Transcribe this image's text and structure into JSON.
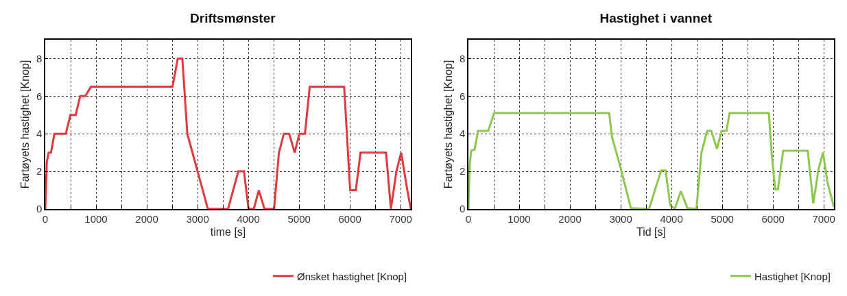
{
  "chart_data": [
    {
      "type": "line",
      "title": "Driftsmønster",
      "xlabel": "time [s]",
      "ylabel": "Fartøyets hastighet [Knop]",
      "series": [
        {
          "name": "Ønsket hastighet [Knop]",
          "color": "#e0393e",
          "x": [
            0,
            30,
            67,
            112,
            180,
            405,
            495,
            598,
            688,
            787,
            900,
            2506,
            2610,
            2700,
            2798,
            3000,
            3203,
            3600,
            3802,
            3914,
            4004,
            4107,
            4206,
            4318,
            4507,
            4602,
            4700,
            4804,
            4912,
            5007,
            5115,
            5209,
            5887,
            6005,
            6117,
            6209,
            6712,
            6808,
            6916,
            7010,
            7131,
            7200
          ],
          "values": [
            0,
            2.5,
            3,
            3,
            4,
            4,
            5,
            5,
            6,
            6,
            6.5,
            6.5,
            8,
            8,
            4,
            2,
            0,
            0,
            2,
            2,
            0,
            0,
            1,
            0,
            0,
            3,
            4,
            4,
            3,
            4,
            4,
            6.5,
            6.5,
            1,
            1,
            3,
            3,
            0,
            2,
            3,
            1,
            0
          ]
        }
      ],
      "xlim": [
        0,
        7200
      ],
      "ylim": [
        0,
        9
      ],
      "xticks": [
        0,
        {
          "value": 500,
          "label": null
        },
        1000,
        {
          "value": 1500,
          "label": null
        },
        2000,
        {
          "value": 2500,
          "label": null
        },
        3000,
        {
          "value": 3500,
          "label": null
        },
        4000,
        {
          "value": 4500,
          "label": null
        },
        5000,
        {
          "value": 5500,
          "label": null
        },
        6000,
        {
          "value": 6500,
          "label": null
        },
        7000
      ],
      "yticks": [
        0,
        2,
        4,
        6,
        8
      ],
      "grid": true,
      "legend": "bottom right"
    },
    {
      "type": "line",
      "title": "Hastighet i vannet",
      "xlabel": "Tid [s]",
      "ylabel": "Fartøyets hastighet [Knop]",
      "series": [
        {
          "name": "Hastighet [Knop]",
          "color": "#8cc84b",
          "x": [
            0,
            25,
            54,
            121,
            189,
            391,
            503,
            2772,
            2830,
            2997,
            3199,
            3558,
            3795,
            3884,
            3975,
            4064,
            4185,
            4312,
            4491,
            4590,
            4702,
            4784,
            4896,
            4986,
            5084,
            5143,
            5917,
            5975,
            6042,
            6096,
            6199,
            6684,
            6792,
            6894,
            6984,
            7074,
            7200
          ],
          "values": [
            0,
            2.3,
            3.1,
            3.15,
            4.15,
            4.15,
            5.1,
            5.1,
            3.8,
            2.2,
            0.05,
            0,
            2.05,
            2.05,
            0.2,
            0,
            0.95,
            0.05,
            0,
            3,
            4.15,
            4.15,
            3.2,
            4.15,
            4.15,
            5.1,
            5.1,
            2.9,
            1.05,
            1.05,
            3.1,
            3.1,
            0.3,
            2.1,
            3,
            1.4,
            0.1
          ]
        }
      ],
      "xlim": [
        0,
        7200
      ],
      "ylim": [
        0,
        9
      ],
      "xticks": [
        0,
        {
          "value": 500,
          "label": null
        },
        1000,
        {
          "value": 1500,
          "label": null
        },
        2000,
        {
          "value": 2500,
          "label": null
        },
        3000,
        {
          "value": 3500,
          "label": null
        },
        4000,
        {
          "value": 4500,
          "label": null
        },
        5000,
        {
          "value": 5500,
          "label": null
        },
        6000,
        {
          "value": 6500,
          "label": null
        },
        7000
      ],
      "yticks": [
        0,
        2,
        4,
        6,
        8
      ],
      "grid": true,
      "legend": "bottom right"
    }
  ]
}
